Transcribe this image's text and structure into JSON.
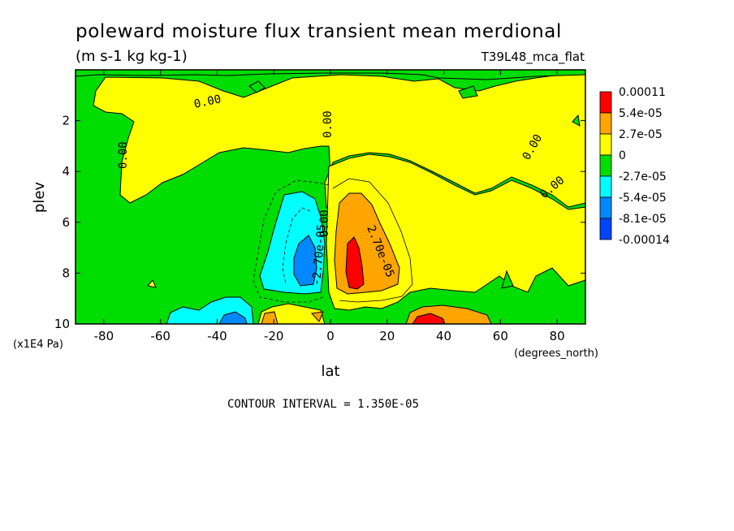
{
  "chart_data": {
    "type": "heatmap",
    "title": "poleward moisture flux transient mean merdional",
    "units": "(m s-1 kg kg-1)",
    "run_label": "T39L48_mca_flat",
    "xlabel": "lat",
    "x_unit": "(degrees_north)",
    "ylabel": "plev",
    "y_unit": "(x1E4 Pa)",
    "xlim": [
      -90,
      90
    ],
    "ylim": [
      10,
      0
    ],
    "x_ticks": [
      -80,
      -60,
      -40,
      -20,
      0,
      20,
      40,
      60,
      80
    ],
    "y_ticks": [
      2,
      4,
      6,
      8,
      10
    ],
    "footer": "CONTOUR INTERVAL = 1.350E-05",
    "contour_labels": [
      "0.00",
      "0.00",
      "0.00",
      "0.00",
      "0.00",
      "0.00",
      "-2.70e-05",
      "2.70e-05"
    ],
    "legend": {
      "placement": "right",
      "colors": [
        "#ff0000",
        "#ffa500",
        "#ffff00",
        "#00dd00",
        "#00ffff",
        "#0088ff",
        "#0044ff"
      ],
      "labels": [
        "0.00011",
        "5.4e-05",
        "2.7e-05",
        "0",
        "-2.7e-05",
        "-5.4e-05",
        "-8.1e-05",
        "-0.00014"
      ]
    },
    "features": [
      {
        "sign": "positive",
        "lat_range": [
          -2,
          24
        ],
        "plev_range": [
          4.8,
          9.6
        ],
        "peak": 0.00011,
        "peak_lat": 8,
        "peak_plev": 7.5
      },
      {
        "sign": "negative",
        "lat_range": [
          -26,
          -2
        ],
        "plev_range": [
          4.8,
          9.3
        ],
        "peak": -8.1e-05,
        "peak_lat": -9,
        "peak_plev": 8.0
      },
      {
        "sign": "positive",
        "lat_range": [
          24,
          60
        ],
        "plev_range": [
          9.1,
          10
        ],
        "peak": 5.4e-05,
        "peak_lat": 34,
        "peak_plev": 9.8
      },
      {
        "sign": "negative",
        "lat_range": [
          -58,
          -26
        ],
        "plev_range": [
          9.2,
          10
        ],
        "peak": -5.4e-05,
        "peak_lat": -33,
        "peak_plev": 9.8
      }
    ]
  }
}
